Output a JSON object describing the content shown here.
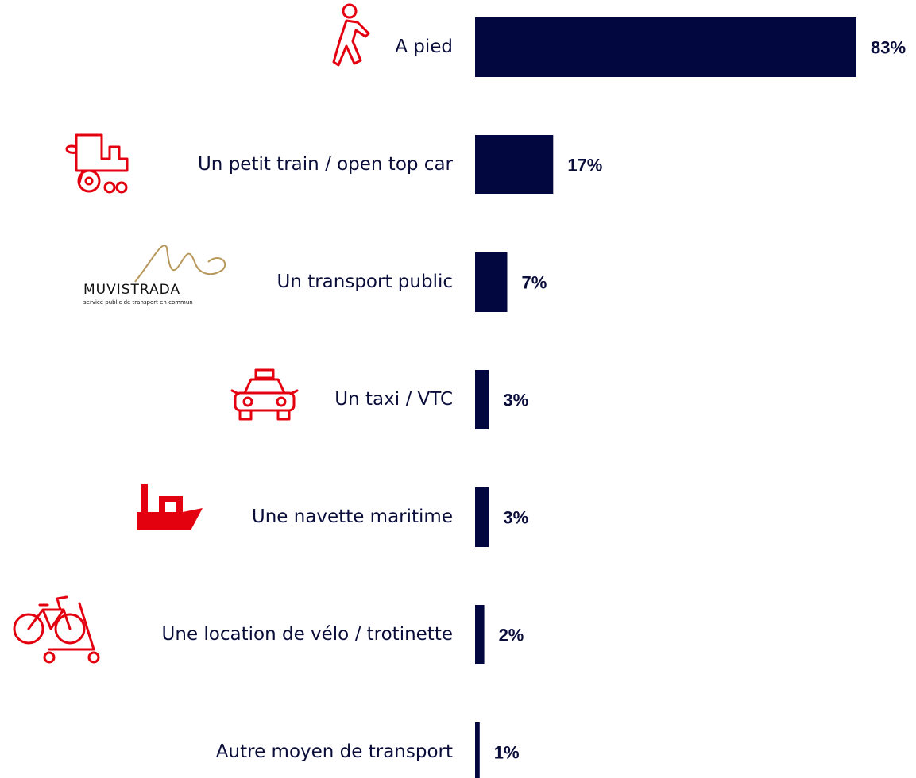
{
  "chart_data": {
    "type": "bar",
    "orientation": "horizontal",
    "categories": [
      "A pied",
      "Un petit train / open top car",
      "Un transport public",
      "Un taxi / VTC",
      "Une navette maritime",
      "Une location de vélo / trotinette",
      "Autre moyen de transport"
    ],
    "values": [
      83,
      17,
      7,
      3,
      3,
      2,
      1
    ],
    "value_labels": [
      "83%",
      "17%",
      "7%",
      "3%",
      "3%",
      "2%",
      "1%"
    ],
    "color": "#03073f"
  },
  "logo": {
    "name": "MUVISTRADA",
    "tagline": "service public de transport en commun"
  }
}
